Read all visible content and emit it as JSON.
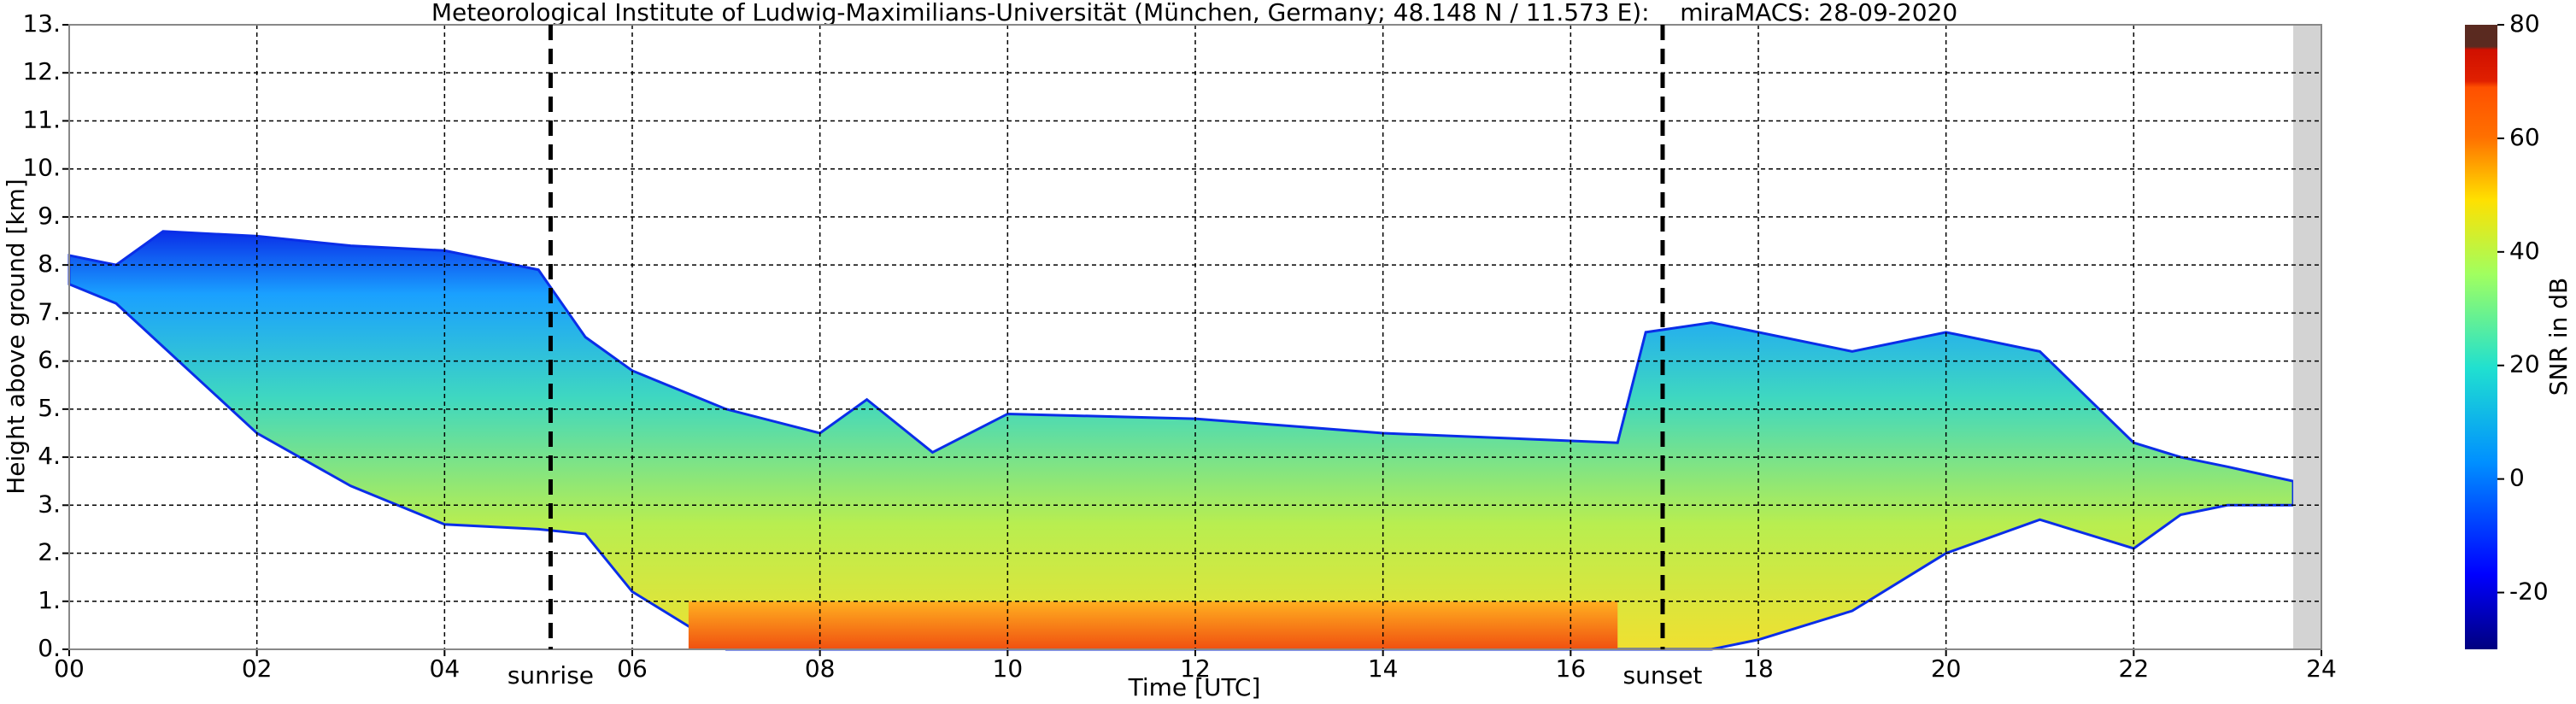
{
  "chart_data": {
    "type": "time-height",
    "title": "Meteorological Institute of Ludwig-Maximilians-Universität (München, Germany; 48.148 N / 11.573 E):    miraMACS: 28-09-2020",
    "xlabel": "Time [UTC]",
    "ylabel": "Height above ground [km]",
    "xlim": [
      0,
      24
    ],
    "xticks": [
      {
        "value": 0,
        "label": "00"
      },
      {
        "value": 2,
        "label": "02"
      },
      {
        "value": 4,
        "label": "04"
      },
      {
        "value": 6,
        "label": "06"
      },
      {
        "value": 8,
        "label": "08"
      },
      {
        "value": 10,
        "label": "10"
      },
      {
        "value": 12,
        "label": "12"
      },
      {
        "value": 14,
        "label": "14"
      },
      {
        "value": 16,
        "label": "16"
      },
      {
        "value": 18,
        "label": "18"
      },
      {
        "value": 20,
        "label": "20"
      },
      {
        "value": 22,
        "label": "22"
      },
      {
        "value": 24,
        "label": "24"
      }
    ],
    "ylim": [
      0,
      13
    ],
    "yticks": [
      {
        "value": 0,
        "label": "0."
      },
      {
        "value": 1,
        "label": "1."
      },
      {
        "value": 2,
        "label": "2."
      },
      {
        "value": 3,
        "label": "3."
      },
      {
        "value": 4,
        "label": "4."
      },
      {
        "value": 5,
        "label": "5."
      },
      {
        "value": 6,
        "label": "6."
      },
      {
        "value": 7,
        "label": "7."
      },
      {
        "value": 8,
        "label": "8."
      },
      {
        "value": 9,
        "label": "9."
      },
      {
        "value": 10,
        "label": "10."
      },
      {
        "value": 11,
        "label": "11."
      },
      {
        "value": 12,
        "label": "12."
      },
      {
        "value": 13,
        "label": "13."
      }
    ],
    "grid": true,
    "x": [
      0,
      0.5,
      1,
      2,
      3,
      4,
      5,
      5.5,
      6,
      7,
      8,
      8.5,
      9.2,
      10,
      12,
      14,
      16.5,
      16.8,
      17.5,
      18,
      19,
      20,
      21,
      22,
      22.5,
      23,
      23.7
    ],
    "top": [
      8.2,
      8.0,
      8.7,
      8.6,
      8.4,
      8.3,
      7.9,
      6.5,
      5.8,
      5.0,
      4.5,
      5.2,
      4.1,
      4.9,
      4.8,
      4.5,
      4.3,
      6.6,
      6.8,
      6.6,
      6.2,
      6.6,
      6.2,
      4.3,
      4.0,
      3.8,
      3.5
    ],
    "base": [
      7.6,
      7.2,
      6.3,
      4.5,
      3.4,
      2.6,
      2.5,
      2.4,
      1.2,
      0,
      0,
      0,
      0,
      0,
      0,
      0,
      0,
      0,
      0,
      0.2,
      0.8,
      2.0,
      2.7,
      2.1,
      2.8,
      3.0,
      3.0
    ],
    "core": {
      "x": [
        6.6,
        16.5
      ],
      "top": 1.0
    },
    "annotations": [
      {
        "text": "sunrise",
        "x": 5.13
      },
      {
        "text": "sunset",
        "x": 16.98
      }
    ],
    "no_data_from": 23.7,
    "colorbar": {
      "label": "SNR in dB",
      "lim": [
        -30,
        80
      ],
      "ticks": [
        -20,
        0,
        20,
        40,
        60,
        80
      ]
    }
  }
}
